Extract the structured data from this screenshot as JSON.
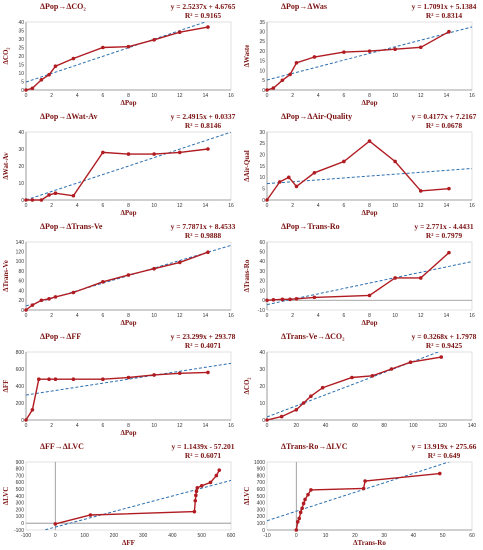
{
  "colors": {
    "series": "#b01c22",
    "trend": "#2b6fb0",
    "axis": "#8a8a8a",
    "text": "#7a1010"
  },
  "chart_data": [
    {
      "type": "scatter",
      "title": "ΔPop→ΔCO₂",
      "equation": "y = 2.5237x + 4.6765",
      "r2": "R² = 0.9165",
      "xlabel": "ΔPop",
      "ylabel": "ΔCO₂",
      "xlim": [
        0,
        16
      ],
      "ylim": [
        0,
        40
      ],
      "xticks": [
        "0",
        "2",
        "4",
        "6",
        "8",
        "10",
        "12",
        "14",
        "16"
      ],
      "yticks": [
        "0",
        "5",
        "10",
        "15",
        "20",
        "25",
        "30",
        "35",
        "40"
      ],
      "points": [
        [
          0,
          0
        ],
        [
          0.5,
          1
        ],
        [
          1.2,
          6
        ],
        [
          1.8,
          9
        ],
        [
          2.3,
          14
        ],
        [
          3.7,
          18.5
        ],
        [
          6,
          25
        ],
        [
          8,
          25.5
        ],
        [
          10,
          29.5
        ],
        [
          12,
          34
        ],
        [
          14.2,
          37
        ]
      ],
      "trend": {
        "slope": 2.5237,
        "intercept": 4.6765
      }
    },
    {
      "type": "scatter",
      "title": "ΔPop→ΔWas",
      "equation": "y = 1.7091x + 5.1384",
      "r2": "R² = 0.8314",
      "xlabel": "ΔPop",
      "ylabel": "ΔWaste",
      "xlim": [
        0,
        16
      ],
      "ylim": [
        0,
        35
      ],
      "xticks": [
        "0",
        "2",
        "4",
        "6",
        "8",
        "10",
        "12",
        "14",
        "16"
      ],
      "yticks": [
        "0",
        "5",
        "10",
        "15",
        "20",
        "25",
        "30",
        "35"
      ],
      "points": [
        [
          0,
          0
        ],
        [
          0.5,
          1
        ],
        [
          1.2,
          5
        ],
        [
          1.8,
          8
        ],
        [
          2.3,
          14
        ],
        [
          3.7,
          17
        ],
        [
          6,
          19.5
        ],
        [
          8,
          20
        ],
        [
          10,
          21
        ],
        [
          12,
          22
        ],
        [
          14.2,
          30
        ]
      ],
      "trend": {
        "slope": 1.7091,
        "intercept": 5.1384
      }
    },
    {
      "type": "scatter",
      "title": "ΔPop→ΔWat-Av",
      "equation": "y = 2.4915x + 0.0337",
      "r2": "R² = 0.8146",
      "xlabel": "ΔPop",
      "ylabel": "ΔWat-Av",
      "xlim": [
        0,
        16
      ],
      "ylim": [
        0,
        40
      ],
      "xticks": [
        "0",
        "2",
        "4",
        "6",
        "8",
        "10",
        "12",
        "14",
        "16"
      ],
      "yticks": [
        "0",
        "10",
        "20",
        "30",
        "40"
      ],
      "points": [
        [
          0,
          0
        ],
        [
          0.5,
          0
        ],
        [
          1.2,
          0
        ],
        [
          1.8,
          3
        ],
        [
          2.3,
          4
        ],
        [
          3.7,
          2.5
        ],
        [
          6,
          28
        ],
        [
          8,
          27
        ],
        [
          10,
          27
        ],
        [
          12,
          28
        ],
        [
          14.2,
          30
        ]
      ],
      "trend": {
        "slope": 2.4915,
        "intercept": 0.0337
      }
    },
    {
      "type": "scatter",
      "title": "ΔPop→ΔAir-Quality",
      "equation": "y = 0.4177x + 7.2167",
      "r2": "R² = 0.0678",
      "xlabel": "ΔPop",
      "ylabel": "ΔAir-Qual",
      "xlim": [
        0,
        16
      ],
      "ylim": [
        0,
        30
      ],
      "xticks": [
        "0",
        "2",
        "4",
        "6",
        "8",
        "10",
        "12",
        "14",
        "16"
      ],
      "yticks": [
        "0",
        "5",
        "10",
        "15",
        "20",
        "25",
        "30"
      ],
      "points": [
        [
          0,
          0
        ],
        [
          1,
          8
        ],
        [
          1.7,
          10
        ],
        [
          2.3,
          6
        ],
        [
          3.7,
          12
        ],
        [
          6,
          17
        ],
        [
          8,
          26
        ],
        [
          10,
          17
        ],
        [
          12,
          4
        ],
        [
          14.2,
          5
        ]
      ],
      "trend": {
        "slope": 0.4177,
        "intercept": 7.2167
      }
    },
    {
      "type": "scatter",
      "title": "ΔPop→ΔTrans-Ve",
      "equation": "y = 7.7871x + 8.4533",
      "r2": "R² = 0.9888",
      "xlabel": "ΔPop",
      "ylabel": "ΔTrans-Ve",
      "xlim": [
        0,
        16
      ],
      "ylim": [
        0,
        140
      ],
      "xticks": [
        "0",
        "2",
        "4",
        "6",
        "8",
        "10",
        "12",
        "14",
        "16"
      ],
      "yticks": [
        "0",
        "20",
        "40",
        "60",
        "80",
        "100",
        "120",
        "140"
      ],
      "points": [
        [
          0,
          0
        ],
        [
          0.5,
          10
        ],
        [
          1.2,
          20
        ],
        [
          1.8,
          23
        ],
        [
          2.3,
          27
        ],
        [
          3.7,
          36
        ],
        [
          6,
          58
        ],
        [
          8,
          72
        ],
        [
          10,
          85
        ],
        [
          12,
          98
        ],
        [
          14.2,
          119
        ]
      ],
      "trend": {
        "slope": 7.7871,
        "intercept": 8.4533
      }
    },
    {
      "type": "scatter",
      "title": "ΔPop→Trans-Ro",
      "equation": "y = 2.771x - 4.4431",
      "r2": "R² = 0.7979",
      "xlabel": "ΔPop",
      "ylabel": "ΔTrans-Ro",
      "xlim": [
        0,
        16
      ],
      "ylim": [
        -10,
        60
      ],
      "xticks": [
        "0",
        "2",
        "4",
        "6",
        "8",
        "10",
        "12",
        "14",
        "16"
      ],
      "yticks": [
        "-10",
        "0",
        "10",
        "20",
        "30",
        "40",
        "50",
        "60"
      ],
      "points": [
        [
          0,
          0
        ],
        [
          0.5,
          0.5
        ],
        [
          1.2,
          1
        ],
        [
          1.8,
          1
        ],
        [
          2.3,
          1.5
        ],
        [
          3.7,
          3
        ],
        [
          8,
          5
        ],
        [
          10,
          23
        ],
        [
          12,
          23
        ],
        [
          14.2,
          49
        ]
      ],
      "trend": {
        "slope": 2.771,
        "intercept": -4.4431
      }
    },
    {
      "type": "scatter",
      "title": "ΔPop→ΔFF",
      "equation": "y = 23.299x + 293.78",
      "r2": "R² = 0.4071",
      "xlabel": "ΔPop",
      "ylabel": "ΔFF",
      "xlim": [
        0,
        16
      ],
      "ylim": [
        0,
        800
      ],
      "xticks": [
        "0",
        "2",
        "4",
        "6",
        "8",
        "10",
        "12",
        "14",
        "16"
      ],
      "yticks": [
        "0",
        "200",
        "400",
        "600",
        "800"
      ],
      "points": [
        [
          0,
          0
        ],
        [
          0.5,
          120
        ],
        [
          1,
          480
        ],
        [
          1.8,
          480
        ],
        [
          2.3,
          480
        ],
        [
          3.7,
          480
        ],
        [
          6,
          480
        ],
        [
          8,
          500
        ],
        [
          10,
          530
        ],
        [
          12,
          550
        ],
        [
          14.2,
          560
        ]
      ],
      "trend": {
        "slope": 23.299,
        "intercept": 293.78
      }
    },
    {
      "type": "scatter",
      "title": "ΔTrans-Ve→ΔCO₂",
      "equation": "y = 0.3268x + 1.7978",
      "r2": "R² = 0.9425",
      "xlabel": "",
      "ylabel": "ΔCO₂",
      "xlim": [
        0,
        140
      ],
      "ylim": [
        0,
        40
      ],
      "xticks": [
        "0",
        "20",
        "40",
        "60",
        "80",
        "100",
        "120",
        "140"
      ],
      "yticks": [
        "0",
        "10",
        "20",
        "30",
        "40"
      ],
      "points": [
        [
          0,
          0
        ],
        [
          10,
          2
        ],
        [
          20,
          6
        ],
        [
          25,
          10
        ],
        [
          30,
          14
        ],
        [
          38,
          19
        ],
        [
          58,
          25
        ],
        [
          72,
          26
        ],
        [
          85,
          30
        ],
        [
          98,
          34
        ],
        [
          119,
          37
        ]
      ],
      "trend": {
        "slope": 0.3268,
        "intercept": 1.7978
      }
    },
    {
      "type": "scatter",
      "title": "ΔFF→ΔLVC",
      "equation": "y = 1.1439x - 57.201",
      "r2": "R² = 0.6071",
      "xlabel": "ΔFF",
      "ylabel": "ΔLVC",
      "xlim": [
        -100,
        600
      ],
      "ylim": [
        -100,
        900
      ],
      "xticks": [
        "-100",
        "0",
        "100",
        "200",
        "300",
        "400",
        "500",
        "600"
      ],
      "yticks": [
        "-100",
        "0",
        "100",
        "200",
        "300",
        "400",
        "500",
        "600",
        "700",
        "800",
        "900"
      ],
      "points": [
        [
          0,
          -10
        ],
        [
          120,
          120
        ],
        [
          475,
          170
        ],
        [
          478,
          330
        ],
        [
          480,
          410
        ],
        [
          482,
          470
        ],
        [
          485,
          520
        ],
        [
          500,
          550
        ],
        [
          530,
          600
        ],
        [
          550,
          700
        ],
        [
          560,
          780
        ]
      ],
      "trend": {
        "slope": 1.1439,
        "intercept": -57.201
      }
    },
    {
      "type": "scatter",
      "title": "ΔTrans-Ro→ΔLVC",
      "equation": "y = 13.919x + 275.66",
      "r2": "R² = 0.649",
      "xlabel": "ΔTrans-Ro",
      "ylabel": "ΔLVC",
      "xlim": [
        -10,
        60
      ],
      "ylim": [
        0,
        1000
      ],
      "xticks": [
        "-10",
        "0",
        "10",
        "20",
        "30",
        "40",
        "50",
        "60"
      ],
      "yticks": [
        "0",
        "100",
        "200",
        "300",
        "400",
        "500",
        "600",
        "700",
        "800",
        "900",
        "1000"
      ],
      "points": [
        [
          0,
          0
        ],
        [
          0.5,
          120
        ],
        [
          1,
          170
        ],
        [
          1.5,
          260
        ],
        [
          2,
          320
        ],
        [
          2.5,
          390
        ],
        [
          3,
          450
        ],
        [
          4,
          520
        ],
        [
          5,
          590
        ],
        [
          23,
          610
        ],
        [
          23.5,
          720
        ],
        [
          49,
          830
        ]
      ],
      "trend": {
        "slope": 13.919,
        "intercept": 275.66
      }
    }
  ]
}
